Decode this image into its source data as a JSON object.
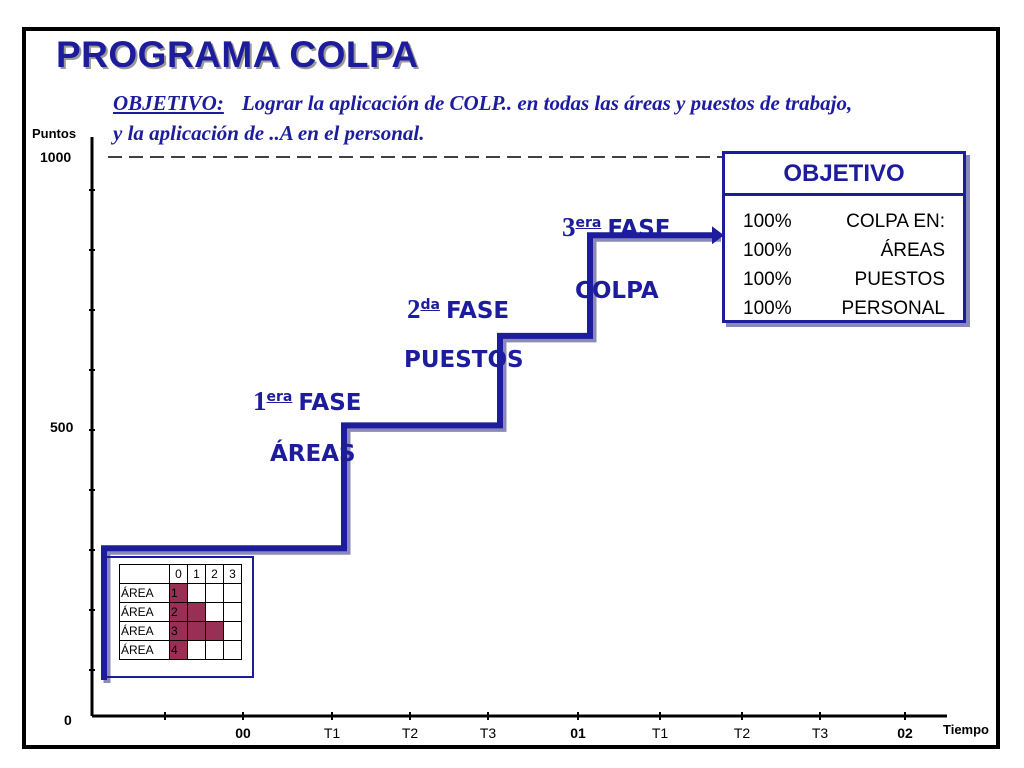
{
  "slide": {
    "title": "PROGRAMA COLPA",
    "objective_label": "OBJETIVO:",
    "objective_text": "Lograr la aplicación de COLP.. en todas las áreas y puestos de trabajo, y la aplicación de ..A en el personal."
  },
  "objective_box": {
    "title": "OBJETIVO",
    "lines": [
      {
        "pct": "100%",
        "what": "COLPA EN:"
      },
      {
        "pct": "100%",
        "what": "ÁREAS"
      },
      {
        "pct": "100%",
        "what": "PUESTOS"
      },
      {
        "pct": "100%",
        "what": "PERSONAL"
      }
    ]
  },
  "phases": [
    {
      "num": "1",
      "sup": "era",
      "word": "FASE",
      "focus": "ÁREAS"
    },
    {
      "num": "2",
      "sup": "da",
      "word": "FASE",
      "focus": "PUESTOS"
    },
    {
      "num": "3",
      "sup": "era",
      "word": "FASE",
      "focus": "COLPA"
    }
  ],
  "mini_table": {
    "header": [
      "0",
      "1",
      "2",
      "3"
    ],
    "rows": [
      {
        "label": "ÁREA",
        "num": "1",
        "filled": 0
      },
      {
        "label": "ÁREA",
        "num": "2",
        "filled": 1
      },
      {
        "label": "ÁREA",
        "num": "3",
        "filled": 2
      },
      {
        "label": "ÁREA",
        "num": "4",
        "filled": 0
      }
    ]
  },
  "colors": {
    "accent": "#1c1c9c",
    "shadow": "#8a8ab8",
    "fill": "#9a2f55"
  },
  "chart_data": {
    "type": "line",
    "step": true,
    "ylabel": "Puntos",
    "xlabel": "Tiempo",
    "ylim": [
      0,
      1000
    ],
    "yticks": [
      "0",
      "500",
      "1000"
    ],
    "x_ticks": [
      {
        "label": "00",
        "bold": true
      },
      {
        "label": "T1",
        "bold": false
      },
      {
        "label": "T2",
        "bold": false
      },
      {
        "label": "T3",
        "bold": false
      },
      {
        "label": "01",
        "bold": true
      },
      {
        "label": "T1",
        "bold": false
      },
      {
        "label": "T2",
        "bold": false
      },
      {
        "label": "T3",
        "bold": false
      },
      {
        "label": "02",
        "bold": true
      }
    ],
    "target_line_value": 1000,
    "series": [
      {
        "values": [
          {
            "x": "00",
            "y": 300
          },
          {
            "x": "T1",
            "y": 520
          },
          {
            "x": "T3",
            "y": 680
          },
          {
            "x": "01",
            "y": 860
          }
        ]
      }
    ]
  }
}
